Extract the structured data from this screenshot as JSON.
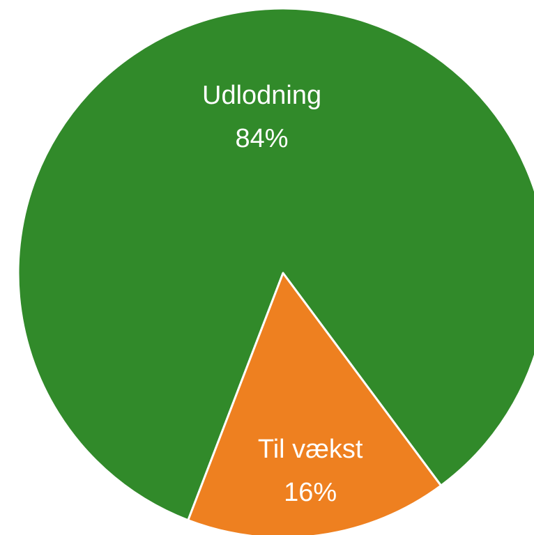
{
  "chart_data": {
    "type": "pie",
    "categories": [
      "Udlodning",
      "Til vækst"
    ],
    "values": [
      84,
      16
    ],
    "value_labels": [
      "84%",
      "16%"
    ],
    "colors": [
      "#318a2a",
      "#ee8020"
    ]
  }
}
